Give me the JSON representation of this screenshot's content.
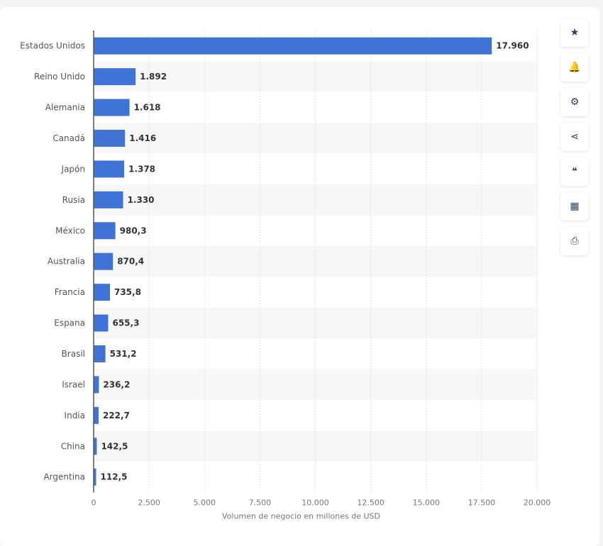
{
  "chart_data": {
    "type": "bar",
    "orientation": "horizontal",
    "categories": [
      "Estados Unidos",
      "Reino Unido",
      "Alemania",
      "Canadá",
      "Japón",
      "Rusia",
      "México",
      "Australia",
      "Francia",
      "Espana",
      "Brasil",
      "Israel",
      "India",
      "China",
      "Argentina"
    ],
    "values": [
      17960,
      1892,
      1618,
      1416,
      1378,
      1330,
      980.3,
      870.4,
      735.8,
      655.3,
      531.2,
      236.2,
      222.7,
      142.5,
      112.5
    ],
    "value_labels": [
      "17.960",
      "1.892",
      "1.618",
      "1.416",
      "1.378",
      "1.330",
      "980,3",
      "870,4",
      "735,8",
      "655,3",
      "531,2",
      "236,2",
      "222,7",
      "142,5",
      "112,5"
    ],
    "xlabel": "Volumen de negocio en millones de USD",
    "xlim": [
      0,
      20000
    ],
    "ticks": [
      0,
      2500,
      5000,
      7500,
      10000,
      12500,
      15000,
      17500,
      20000
    ],
    "tick_labels": [
      "0",
      "2.500",
      "5.000",
      "7.500",
      "10.000",
      "12.500",
      "15.000",
      "17.500",
      "20.000"
    ],
    "grid": true,
    "bar_color": "#4073d6"
  },
  "toolbar": [
    {
      "icon": "star-icon",
      "glyph": "★"
    },
    {
      "icon": "bell-icon",
      "glyph": "🔔"
    },
    {
      "icon": "gear-icon",
      "glyph": "⚙"
    },
    {
      "icon": "share-icon",
      "glyph": "⋖"
    },
    {
      "icon": "quote-icon",
      "glyph": "❝"
    },
    {
      "icon": "flag-uk-icon",
      "glyph": "▦"
    },
    {
      "icon": "print-icon",
      "glyph": "⎙"
    }
  ]
}
